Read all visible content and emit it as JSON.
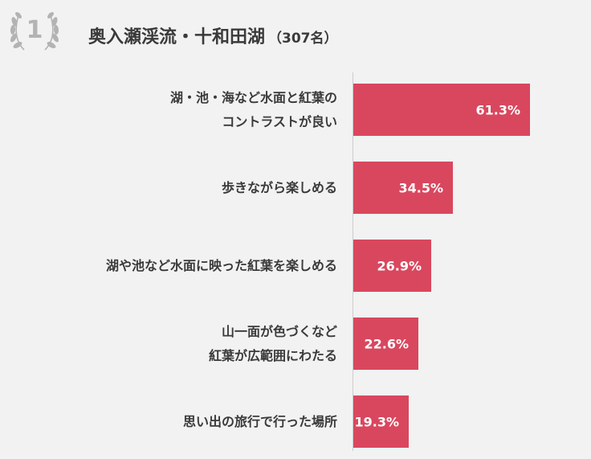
{
  "header": {
    "rank": "1",
    "title": "奥入瀬渓流・十和田湖",
    "count": "（307名）"
  },
  "colors": {
    "bar": "#d9475e",
    "axis": "#cccccc",
    "badge": "#b3b3b3"
  },
  "icons": {
    "laurel": "laurel-wreath-icon"
  },
  "chart_data": {
    "type": "bar",
    "orientation": "horizontal",
    "categories": [
      "湖・池・海など水面と紅葉の\nコントラストが良い",
      "歩きながら楽しめる",
      "湖や池など水面に映った紅葉を楽しめる",
      "山一面が色づくなど\n紅葉が広範囲にわたる",
      "思い出の旅行で行った場所"
    ],
    "values": [
      61.3,
      34.5,
      26.9,
      22.6,
      19.3
    ],
    "value_labels": [
      "61.3%",
      "34.5%",
      "26.9%",
      "22.6%",
      "19.3%"
    ],
    "unit": "%",
    "xlim": [
      0,
      61.3
    ],
    "grid": false,
    "legend": "none"
  }
}
